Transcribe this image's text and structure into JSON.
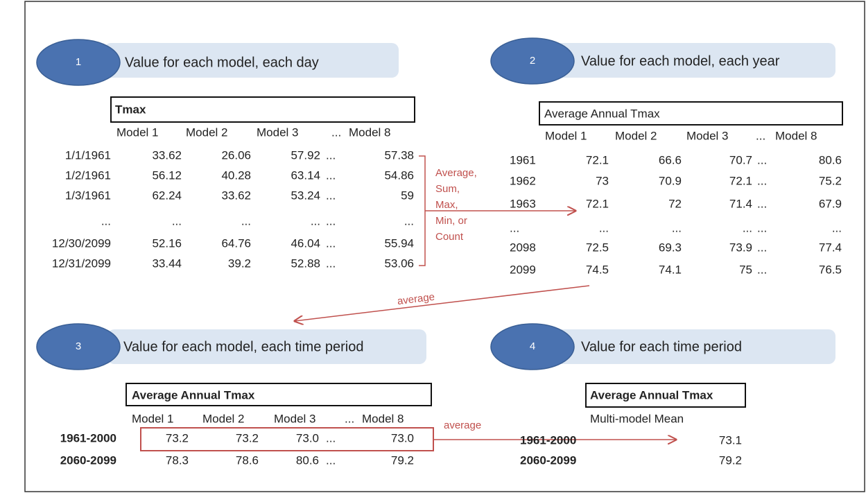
{
  "steps": [
    {
      "number": "1",
      "label": "Value for each model, each day"
    },
    {
      "number": "2",
      "label": "Value for each model, each year"
    },
    {
      "number": "3",
      "label": "Value for each model, each time period"
    },
    {
      "number": "4",
      "label": "Value for each time period"
    }
  ],
  "tables": [
    {
      "title": "Tmax",
      "columns": [
        "Model 1",
        "Model 2",
        "Model 3",
        "...",
        "Model 8"
      ],
      "rows": [
        [
          "1/1/1961",
          "33.62",
          "26.06",
          "57.92",
          "...",
          "57.38"
        ],
        [
          "1/2/1961",
          "56.12",
          "40.28",
          "63.14",
          "...",
          "54.86"
        ],
        [
          "1/3/1961",
          "62.24",
          "33.62",
          "53.24",
          "...",
          "59"
        ],
        [
          "...",
          "...",
          "...",
          "...",
          "...",
          "..."
        ],
        [
          "12/30/2099",
          "52.16",
          "64.76",
          "46.04",
          "...",
          "55.94"
        ],
        [
          "12/31/2099",
          "33.44",
          "39.2",
          "52.88",
          "...",
          "53.06"
        ]
      ]
    },
    {
      "title": "Average Annual Tmax",
      "columns": [
        "Model 1",
        "Model 2",
        "Model 3",
        "...",
        "Model 8"
      ],
      "rows": [
        [
          "1961",
          "72.1",
          "66.6",
          "70.7",
          "...",
          "80.6"
        ],
        [
          "1962",
          "73",
          "70.9",
          "72.1",
          "...",
          "75.2"
        ],
        [
          "1963",
          "72.1",
          "72",
          "71.4",
          "...",
          "67.9"
        ],
        [
          "...",
          "...",
          "...",
          "...",
          "...",
          "..."
        ],
        [
          "2098",
          "72.5",
          "69.3",
          "73.9",
          "...",
          "77.4"
        ],
        [
          "2099",
          "74.5",
          "74.1",
          "75",
          "...",
          "76.5"
        ]
      ]
    },
    {
      "title": "Average Annual Tmax",
      "columns": [
        "Model 1",
        "Model 2",
        "Model 3",
        "...",
        "Model 8"
      ],
      "rows": [
        [
          "1961-2000",
          "73.2",
          "73.2",
          "73.0",
          "...",
          "73.0"
        ],
        [
          "2060-2099",
          "78.3",
          "78.6",
          "80.6",
          "...",
          "79.2"
        ]
      ]
    },
    {
      "title": "Average Annual Tmax",
      "columns": [
        "Multi-model Mean"
      ],
      "rows": [
        [
          "1961-2000",
          "73.1"
        ],
        [
          "2060-2099",
          "79.2"
        ]
      ]
    }
  ],
  "annotations": {
    "aggregations": [
      "Average,",
      "Sum,",
      "Max,",
      "Min, or",
      "Count"
    ],
    "average_1": "average",
    "average_2": "average"
  }
}
